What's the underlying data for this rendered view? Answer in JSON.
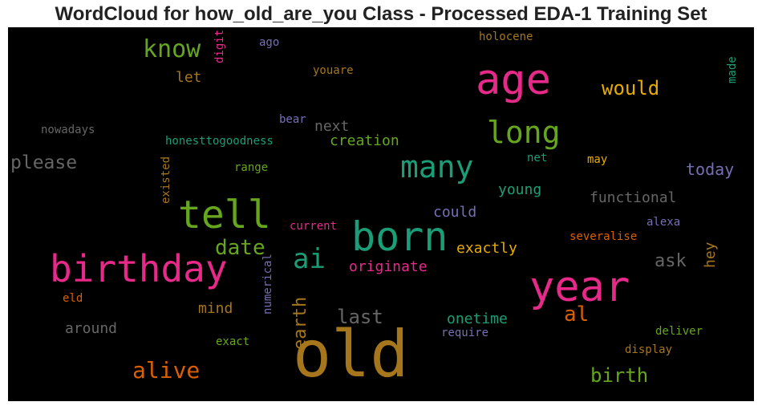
{
  "chart_data": {
    "type": "wordcloud",
    "title": "WordCloud for how_old_are_you Class - Processed EDA-1 Training Set",
    "background": "#000000",
    "colormap": "Dark2",
    "words": [
      {
        "text": "old",
        "weight": 1.0,
        "color": "#a6761d",
        "orientation": "horizontal"
      },
      {
        "text": "year",
        "weight": 0.8,
        "color": "#e7298a",
        "orientation": "horizontal"
      },
      {
        "text": "age",
        "weight": 0.78,
        "color": "#e7298a",
        "orientation": "horizontal"
      },
      {
        "text": "born",
        "weight": 0.78,
        "color": "#1b9e77",
        "orientation": "horizontal"
      },
      {
        "text": "birthday",
        "weight": 0.74,
        "color": "#e7298a",
        "orientation": "horizontal"
      },
      {
        "text": "tell",
        "weight": 0.76,
        "color": "#66a61e",
        "orientation": "horizontal"
      },
      {
        "text": "long",
        "weight": 0.6,
        "color": "#66a61e",
        "orientation": "horizontal"
      },
      {
        "text": "many",
        "weight": 0.58,
        "color": "#1b9e77",
        "orientation": "horizontal"
      },
      {
        "text": "ai",
        "weight": 0.52,
        "color": "#1b9e77",
        "orientation": "horizontal"
      },
      {
        "text": "know",
        "weight": 0.5,
        "color": "#66a61e",
        "orientation": "horizontal"
      },
      {
        "text": "alive",
        "weight": 0.46,
        "color": "#d95f02",
        "orientation": "horizontal"
      },
      {
        "text": "date",
        "weight": 0.44,
        "color": "#66a61e",
        "orientation": "horizontal"
      },
      {
        "text": "last",
        "weight": 0.4,
        "color": "#666666",
        "orientation": "horizontal"
      },
      {
        "text": "al",
        "weight": 0.4,
        "color": "#d95f02",
        "orientation": "horizontal"
      },
      {
        "text": "birth",
        "weight": 0.38,
        "color": "#66a61e",
        "orientation": "horizontal"
      },
      {
        "text": "would",
        "weight": 0.38,
        "color": "#e6ab02",
        "orientation": "horizontal"
      },
      {
        "text": "please",
        "weight": 0.38,
        "color": "#666666",
        "orientation": "horizontal"
      },
      {
        "text": "earth",
        "weight": 0.36,
        "color": "#a6761d",
        "orientation": "vertical"
      },
      {
        "text": "ask",
        "weight": 0.35,
        "color": "#666666",
        "orientation": "horizontal"
      },
      {
        "text": "today",
        "weight": 0.34,
        "color": "#7570b3",
        "orientation": "horizontal"
      },
      {
        "text": "creation",
        "weight": 0.3,
        "color": "#66a61e",
        "orientation": "horizontal"
      },
      {
        "text": "exactly",
        "weight": 0.3,
        "color": "#e6ab02",
        "orientation": "horizontal"
      },
      {
        "text": "originate",
        "weight": 0.3,
        "color": "#e7298a",
        "orientation": "horizontal"
      },
      {
        "text": "onetime",
        "weight": 0.3,
        "color": "#1b9e77",
        "orientation": "horizontal"
      },
      {
        "text": "young",
        "weight": 0.3,
        "color": "#1b9e77",
        "orientation": "horizontal"
      },
      {
        "text": "functional",
        "weight": 0.3,
        "color": "#666666",
        "orientation": "horizontal"
      },
      {
        "text": "hey",
        "weight": 0.3,
        "color": "#a6761d",
        "orientation": "vertical"
      },
      {
        "text": "mind",
        "weight": 0.3,
        "color": "#a6761d",
        "orientation": "horizontal"
      },
      {
        "text": "around",
        "weight": 0.3,
        "color": "#666666",
        "orientation": "horizontal"
      },
      {
        "text": "let",
        "weight": 0.28,
        "color": "#a6761d",
        "orientation": "horizontal"
      },
      {
        "text": "next",
        "weight": 0.28,
        "color": "#666666",
        "orientation": "horizontal"
      },
      {
        "text": "could",
        "weight": 0.28,
        "color": "#7570b3",
        "orientation": "horizontal"
      },
      {
        "text": "honesttogoodness",
        "weight": 0.24,
        "color": "#1b9e77",
        "orientation": "horizontal"
      },
      {
        "text": "nowadays",
        "weight": 0.24,
        "color": "#666666",
        "orientation": "horizontal"
      },
      {
        "text": "current",
        "weight": 0.24,
        "color": "#e7298a",
        "orientation": "horizontal"
      },
      {
        "text": "severalise",
        "weight": 0.24,
        "color": "#d95f02",
        "orientation": "horizontal"
      },
      {
        "text": "deliver",
        "weight": 0.24,
        "color": "#66a61e",
        "orientation": "horizontal"
      },
      {
        "text": "display",
        "weight": 0.24,
        "color": "#a6761d",
        "orientation": "horizontal"
      },
      {
        "text": "exact",
        "weight": 0.24,
        "color": "#66a61e",
        "orientation": "horizontal"
      },
      {
        "text": "require",
        "weight": 0.24,
        "color": "#7570b3",
        "orientation": "horizontal"
      },
      {
        "text": "holocene",
        "weight": 0.24,
        "color": "#a6761d",
        "orientation": "horizontal"
      },
      {
        "text": "youare",
        "weight": 0.22,
        "color": "#a6761d",
        "orientation": "horizontal"
      },
      {
        "text": "range",
        "weight": 0.22,
        "color": "#66a61e",
        "orientation": "horizontal"
      },
      {
        "text": "bear",
        "weight": 0.22,
        "color": "#7570b3",
        "orientation": "horizontal"
      },
      {
        "text": "net",
        "weight": 0.22,
        "color": "#1b9e77",
        "orientation": "horizontal"
      },
      {
        "text": "may",
        "weight": 0.22,
        "color": "#e6ab02",
        "orientation": "horizontal"
      },
      {
        "text": "alexa",
        "weight": 0.22,
        "color": "#7570b3",
        "orientation": "horizontal"
      },
      {
        "text": "eld",
        "weight": 0.22,
        "color": "#d95f02",
        "orientation": "horizontal"
      },
      {
        "text": "ago",
        "weight": 0.22,
        "color": "#7570b3",
        "orientation": "horizontal"
      },
      {
        "text": "existed",
        "weight": 0.22,
        "color": "#a6761d",
        "orientation": "vertical"
      },
      {
        "text": "numerical",
        "weight": 0.22,
        "color": "#7570b3",
        "orientation": "vertical"
      },
      {
        "text": "digit",
        "weight": 0.22,
        "color": "#e7298a",
        "orientation": "vertical"
      },
      {
        "text": "made",
        "weight": 0.22,
        "color": "#1b9e77",
        "orientation": "vertical"
      }
    ]
  }
}
